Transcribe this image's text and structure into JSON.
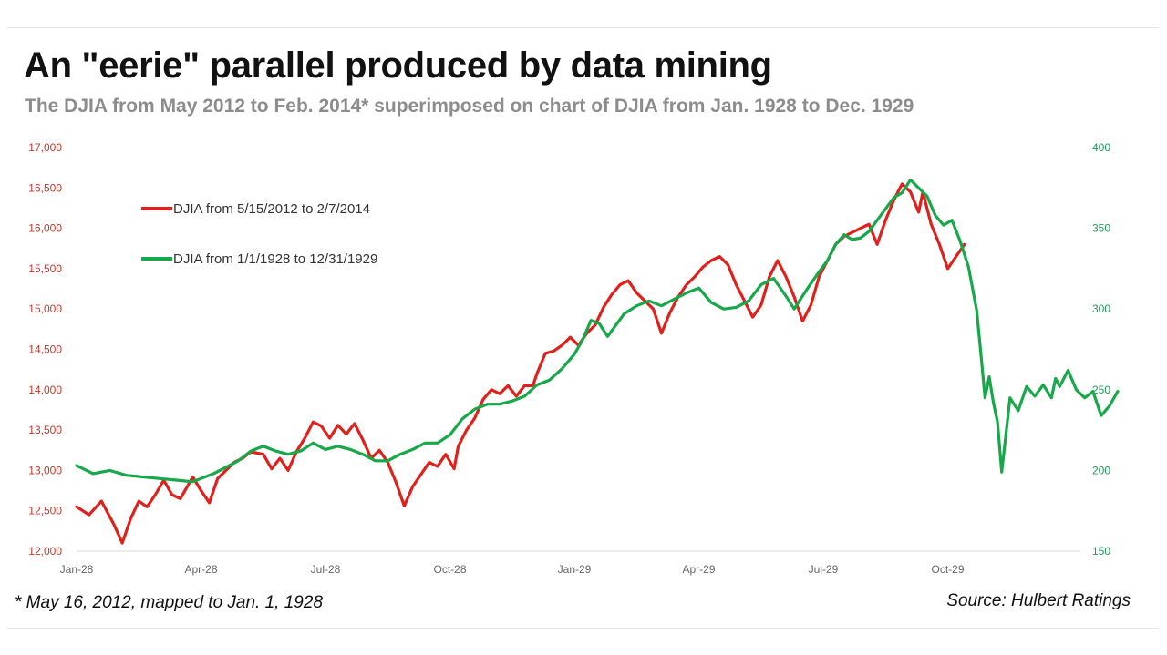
{
  "title": "An \"eerie\" parallel produced by data mining",
  "subtitle": "The DJIA from May 2012 to Feb. 2014* superimposed on chart of DJIA from Jan. 1928 to Dec. 1929",
  "footnote": "* May 16, 2012, mapped to Jan. 1, 1928",
  "source": "Source: Hulbert Ratings",
  "colors": {
    "left_axis": "#c0392b",
    "right_axis": "#1f9d55",
    "series_1929": "#17a84a",
    "series_2012": "#e0201b"
  },
  "chart_data": {
    "type": "line",
    "x_ticks": [
      "Jan-28",
      "Apr-28",
      "Jul-28",
      "Oct-28",
      "Jan-29",
      "Apr-29",
      "Jul-29",
      "Oct-29"
    ],
    "x_tick_months": [
      0,
      3,
      6,
      9,
      12,
      15,
      18,
      21
    ],
    "xlim_months": [
      0,
      23.9
    ],
    "y_left": {
      "ticks": [
        "12,000",
        "12,500",
        "13,000",
        "13,500",
        "14,000",
        "14,500",
        "15,000",
        "15,500",
        "16,000",
        "16,500",
        "17,000"
      ],
      "ylim": [
        12000,
        17000
      ]
    },
    "y_right": {
      "ticks": [
        "150",
        "200",
        "250",
        "300",
        "350",
        "400"
      ],
      "ylim": [
        150,
        400
      ]
    },
    "grid": false,
    "legend_position": "top-left",
    "series": [
      {
        "name": "DJIA from 5/15/2012 to 2/7/2014",
        "axis": "left",
        "color": "#e0201b",
        "points": [
          [
            0,
            12550
          ],
          [
            0.3,
            12450
          ],
          [
            0.6,
            12620
          ],
          [
            0.9,
            12330
          ],
          [
            1.1,
            12100
          ],
          [
            1.3,
            12400
          ],
          [
            1.5,
            12620
          ],
          [
            1.7,
            12550
          ],
          [
            1.9,
            12700
          ],
          [
            2.1,
            12880
          ],
          [
            2.3,
            12700
          ],
          [
            2.5,
            12650
          ],
          [
            2.8,
            12920
          ],
          [
            3.0,
            12750
          ],
          [
            3.2,
            12600
          ],
          [
            3.4,
            12900
          ],
          [
            3.6,
            13000
          ],
          [
            3.8,
            13100
          ],
          [
            4.0,
            13150
          ],
          [
            4.2,
            13230
          ],
          [
            4.5,
            13200
          ],
          [
            4.7,
            13020
          ],
          [
            4.9,
            13150
          ],
          [
            5.1,
            13000
          ],
          [
            5.3,
            13230
          ],
          [
            5.5,
            13400
          ],
          [
            5.7,
            13600
          ],
          [
            5.9,
            13550
          ],
          [
            6.1,
            13400
          ],
          [
            6.3,
            13560
          ],
          [
            6.5,
            13450
          ],
          [
            6.7,
            13580
          ],
          [
            6.9,
            13380
          ],
          [
            7.1,
            13150
          ],
          [
            7.3,
            13250
          ],
          [
            7.5,
            13100
          ],
          [
            7.7,
            12850
          ],
          [
            7.9,
            12560
          ],
          [
            8.1,
            12800
          ],
          [
            8.3,
            12950
          ],
          [
            8.5,
            13100
          ],
          [
            8.7,
            13050
          ],
          [
            8.9,
            13200
          ],
          [
            9.1,
            13020
          ],
          [
            9.2,
            13300
          ],
          [
            9.4,
            13500
          ],
          [
            9.6,
            13650
          ],
          [
            9.8,
            13880
          ],
          [
            10.0,
            14000
          ],
          [
            10.2,
            13950
          ],
          [
            10.4,
            14050
          ],
          [
            10.6,
            13920
          ],
          [
            10.8,
            14050
          ],
          [
            11.0,
            14050
          ],
          [
            11.1,
            14200
          ],
          [
            11.3,
            14450
          ],
          [
            11.5,
            14480
          ],
          [
            11.7,
            14550
          ],
          [
            11.9,
            14650
          ],
          [
            12.1,
            14550
          ],
          [
            12.3,
            14700
          ],
          [
            12.5,
            14800
          ],
          [
            12.7,
            15020
          ],
          [
            12.9,
            15180
          ],
          [
            13.1,
            15300
          ],
          [
            13.3,
            15350
          ],
          [
            13.5,
            15200
          ],
          [
            13.7,
            15100
          ],
          [
            13.9,
            15000
          ],
          [
            14.1,
            14700
          ],
          [
            14.3,
            14950
          ],
          [
            14.5,
            15150
          ],
          [
            14.7,
            15300
          ],
          [
            14.9,
            15400
          ],
          [
            15.1,
            15520
          ],
          [
            15.3,
            15600
          ],
          [
            15.5,
            15650
          ],
          [
            15.7,
            15550
          ],
          [
            15.9,
            15300
          ],
          [
            16.1,
            15100
          ],
          [
            16.3,
            14900
          ],
          [
            16.5,
            15050
          ],
          [
            16.7,
            15400
          ],
          [
            16.9,
            15600
          ],
          [
            17.1,
            15400
          ],
          [
            17.3,
            15150
          ],
          [
            17.5,
            14850
          ],
          [
            17.7,
            15050
          ],
          [
            17.9,
            15400
          ],
          [
            18.1,
            15600
          ],
          [
            18.3,
            15800
          ],
          [
            18.5,
            15900
          ],
          [
            18.7,
            15950
          ],
          [
            18.9,
            16000
          ],
          [
            19.1,
            16050
          ],
          [
            19.3,
            15800
          ],
          [
            19.5,
            16100
          ],
          [
            19.7,
            16350
          ],
          [
            19.9,
            16550
          ],
          [
            20.1,
            16450
          ],
          [
            20.3,
            16200
          ],
          [
            20.4,
            16450
          ],
          [
            20.6,
            16050
          ],
          [
            20.8,
            15800
          ],
          [
            21.0,
            15500
          ],
          [
            21.2,
            15650
          ],
          [
            21.4,
            15800
          ]
        ]
      },
      {
        "name": "DJIA from 1/1/1928 to 12/31/1929",
        "axis": "right",
        "color": "#17a84a",
        "points": [
          [
            0,
            203
          ],
          [
            0.4,
            198
          ],
          [
            0.8,
            200
          ],
          [
            1.2,
            197
          ],
          [
            1.6,
            196
          ],
          [
            2.0,
            195
          ],
          [
            2.4,
            194
          ],
          [
            2.8,
            193
          ],
          [
            3.0,
            195
          ],
          [
            3.3,
            198
          ],
          [
            3.6,
            202
          ],
          [
            3.9,
            206
          ],
          [
            4.2,
            212
          ],
          [
            4.5,
            215
          ],
          [
            4.8,
            212
          ],
          [
            5.1,
            210
          ],
          [
            5.4,
            212
          ],
          [
            5.7,
            217
          ],
          [
            6.0,
            213
          ],
          [
            6.3,
            215
          ],
          [
            6.6,
            213
          ],
          [
            6.9,
            210
          ],
          [
            7.2,
            206
          ],
          [
            7.5,
            206
          ],
          [
            7.8,
            210
          ],
          [
            8.1,
            213
          ],
          [
            8.4,
            217
          ],
          [
            8.7,
            217
          ],
          [
            9.0,
            222
          ],
          [
            9.3,
            232
          ],
          [
            9.6,
            238
          ],
          [
            9.9,
            241
          ],
          [
            10.2,
            241
          ],
          [
            10.5,
            243
          ],
          [
            10.8,
            246
          ],
          [
            11.1,
            253
          ],
          [
            11.4,
            256
          ],
          [
            11.7,
            263
          ],
          [
            12.0,
            272
          ],
          [
            12.2,
            281
          ],
          [
            12.4,
            293
          ],
          [
            12.6,
            291
          ],
          [
            12.8,
            283
          ],
          [
            13.0,
            290
          ],
          [
            13.2,
            297
          ],
          [
            13.5,
            302
          ],
          [
            13.8,
            305
          ],
          [
            14.1,
            302
          ],
          [
            14.4,
            306
          ],
          [
            14.7,
            310
          ],
          [
            15.0,
            313
          ],
          [
            15.3,
            304
          ],
          [
            15.6,
            300
          ],
          [
            15.9,
            301
          ],
          [
            16.2,
            305
          ],
          [
            16.5,
            315
          ],
          [
            16.8,
            319
          ],
          [
            17.1,
            308
          ],
          [
            17.3,
            300
          ],
          [
            17.6,
            312
          ],
          [
            17.9,
            323
          ],
          [
            18.1,
            330
          ],
          [
            18.3,
            340
          ],
          [
            18.5,
            346
          ],
          [
            18.7,
            343
          ],
          [
            18.9,
            344
          ],
          [
            19.1,
            348
          ],
          [
            19.3,
            355
          ],
          [
            19.5,
            362
          ],
          [
            19.7,
            369
          ],
          [
            19.9,
            372
          ],
          [
            20.1,
            380
          ],
          [
            20.3,
            375
          ],
          [
            20.5,
            370
          ],
          [
            20.7,
            358
          ],
          [
            20.9,
            352
          ],
          [
            21.1,
            355
          ],
          [
            21.3,
            342
          ],
          [
            21.5,
            326
          ],
          [
            21.7,
            299
          ],
          [
            21.8,
            272
          ],
          [
            21.9,
            245
          ],
          [
            22.0,
            258
          ],
          [
            22.1,
            242
          ],
          [
            22.2,
            230
          ],
          [
            22.3,
            199
          ],
          [
            22.5,
            245
          ],
          [
            22.7,
            237
          ],
          [
            22.9,
            252
          ],
          [
            23.1,
            246
          ],
          [
            23.3,
            253
          ],
          [
            23.5,
            245
          ],
          [
            23.6,
            257
          ],
          [
            23.7,
            252
          ],
          [
            23.9,
            262
          ],
          [
            24.1,
            250
          ],
          [
            24.3,
            245
          ],
          [
            24.5,
            249
          ],
          [
            24.7,
            234
          ],
          [
            24.9,
            240
          ],
          [
            25.1,
            249
          ]
        ]
      }
    ]
  }
}
